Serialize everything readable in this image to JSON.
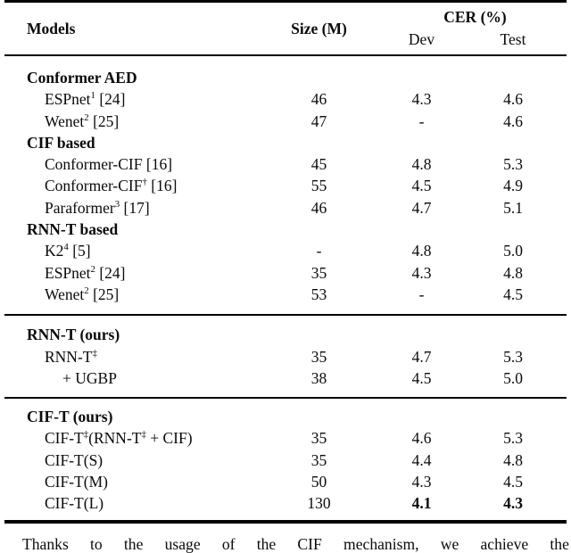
{
  "header": {
    "models": "Models",
    "size": "Size (M)",
    "cer": "CER (%)",
    "dev": "Dev",
    "test": "Test"
  },
  "sections": [
    {
      "rows": [
        {
          "group": true,
          "parts": [
            {
              "t": "Conformer AED"
            }
          ],
          "size": "",
          "dev": "",
          "test": ""
        },
        {
          "parts": [
            {
              "t": "ESPnet"
            },
            {
              "s": "1"
            },
            {
              "t": " [24]"
            }
          ],
          "size": "46",
          "dev": "4.3",
          "test": "4.6"
        },
        {
          "parts": [
            {
              "t": "Wenet"
            },
            {
              "s": "2"
            },
            {
              "t": " [25]"
            }
          ],
          "size": "47",
          "dev": "-",
          "test": "4.6"
        },
        {
          "group": true,
          "parts": [
            {
              "t": "CIF based"
            }
          ],
          "size": "",
          "dev": "",
          "test": ""
        },
        {
          "parts": [
            {
              "t": "Conformer-CIF [16]"
            }
          ],
          "size": "45",
          "dev": "4.8",
          "test": "5.3"
        },
        {
          "parts": [
            {
              "t": "Conformer-CIF"
            },
            {
              "s": "†"
            },
            {
              "t": " [16]"
            }
          ],
          "size": "55",
          "dev": "4.5",
          "test": "4.9"
        },
        {
          "parts": [
            {
              "t": "Paraformer"
            },
            {
              "s": "3"
            },
            {
              "t": " [17]"
            }
          ],
          "size": "46",
          "dev": "4.7",
          "test": "5.1"
        },
        {
          "group": true,
          "parts": [
            {
              "t": "RNN-T based"
            }
          ],
          "size": "",
          "dev": "",
          "test": ""
        },
        {
          "parts": [
            {
              "t": "K2"
            },
            {
              "s": "4"
            },
            {
              "t": " [5]"
            }
          ],
          "size": "-",
          "dev": "4.8",
          "test": "5.0"
        },
        {
          "parts": [
            {
              "t": "ESPnet"
            },
            {
              "s": "2"
            },
            {
              "t": " [24]"
            }
          ],
          "size": "35",
          "dev": "4.3",
          "test": "4.8"
        },
        {
          "parts": [
            {
              "t": "Wenet"
            },
            {
              "s": "2"
            },
            {
              "t": " [25]"
            }
          ],
          "size": "53",
          "dev": "-",
          "test": "4.5"
        }
      ]
    },
    {
      "rows": [
        {
          "group": true,
          "parts": [
            {
              "t": "RNN-T (ours)"
            }
          ],
          "size": "",
          "dev": "",
          "test": ""
        },
        {
          "parts": [
            {
              "t": "RNN-T"
            },
            {
              "s": "‡"
            }
          ],
          "size": "35",
          "dev": "4.7",
          "test": "5.3"
        },
        {
          "indent": 2,
          "parts": [
            {
              "t": "+ UGBP"
            }
          ],
          "size": "38",
          "dev": "4.5",
          "test": "5.0"
        }
      ]
    },
    {
      "rows": [
        {
          "group": true,
          "parts": [
            {
              "t": "CIF-T (ours)"
            }
          ],
          "size": "",
          "dev": "",
          "test": ""
        },
        {
          "parts": [
            {
              "t": "CIF-T"
            },
            {
              "s": "‡"
            },
            {
              "t": "(RNN-T"
            },
            {
              "s": "‡"
            },
            {
              "t": " + CIF)"
            }
          ],
          "size": "35",
          "dev": "4.6",
          "test": "5.3"
        },
        {
          "parts": [
            {
              "t": "CIF-T(S)"
            }
          ],
          "size": "35",
          "dev": "4.4",
          "test": "4.8"
        },
        {
          "parts": [
            {
              "t": "CIF-T(M)"
            }
          ],
          "size": "50",
          "dev": "4.3",
          "test": "4.5"
        },
        {
          "parts": [
            {
              "t": "CIF-T(L)"
            }
          ],
          "size": "130",
          "dev": "4.1",
          "test": "4.3",
          "bold_vals": true
        }
      ]
    }
  ],
  "footer_words": [
    "Thanks",
    "to",
    "the",
    "usage",
    "of",
    "the",
    "CIF",
    "mechanism,",
    "we",
    "achieve",
    "the"
  ],
  "chart_data": {
    "type": "table",
    "title": "",
    "columns": [
      "Models",
      "Size (M)",
      "CER (%) Dev",
      "CER (%) Test"
    ],
    "rows": [
      [
        "ESPnet1 [24]",
        46,
        4.3,
        4.6
      ],
      [
        "Wenet2 [25]",
        47,
        null,
        4.6
      ],
      [
        "Conformer-CIF [16]",
        45,
        4.8,
        5.3
      ],
      [
        "Conformer-CIF† [16]",
        55,
        4.5,
        4.9
      ],
      [
        "Paraformer3 [17]",
        46,
        4.7,
        5.1
      ],
      [
        "K24 [5]",
        null,
        4.8,
        5.0
      ],
      [
        "ESPnet2 [24]",
        35,
        4.3,
        4.8
      ],
      [
        "Wenet2 [25]",
        53,
        null,
        4.5
      ],
      [
        "RNN-T‡",
        35,
        4.7,
        5.3
      ],
      [
        "+ UGBP",
        38,
        4.5,
        5.0
      ],
      [
        "CIF-T‡(RNN-T‡ + CIF)",
        35,
        4.6,
        5.3
      ],
      [
        "CIF-T(S)",
        35,
        4.4,
        4.8
      ],
      [
        "CIF-T(M)",
        50,
        4.3,
        4.5
      ],
      [
        "CIF-T(L)",
        130,
        4.1,
        4.3
      ]
    ]
  },
  "colors": {
    "text": "#0a0a0a",
    "background": "#ffffff",
    "rule": "#000000"
  }
}
